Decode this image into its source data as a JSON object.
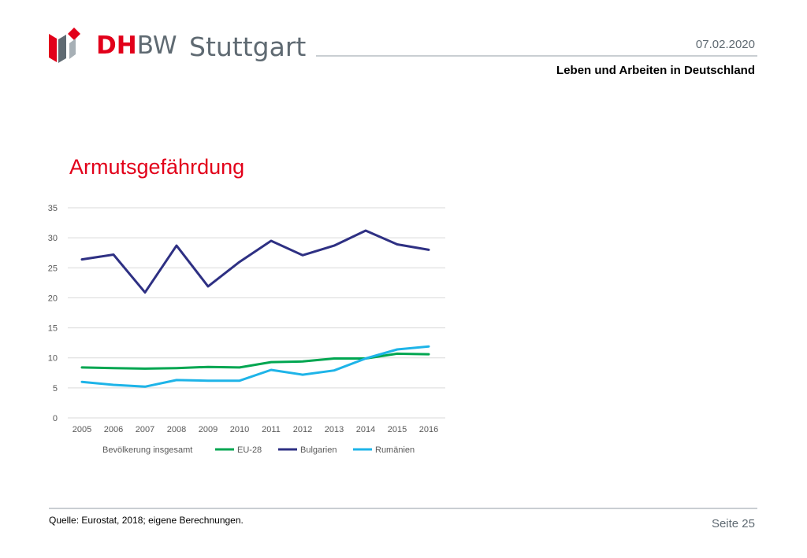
{
  "header": {
    "logo_dh": "DH",
    "logo_bw": "BW",
    "city": "Stuttgart",
    "date": "07.02.2020",
    "subtitle": "Leben und Arbeiten in Deutschland"
  },
  "title": "Armutsgefährdung",
  "footer": {
    "source": "Quelle: Eurostat, 2018; eigene Berechnungen.",
    "page": "Seite 25"
  },
  "colors": {
    "brand_red": "#e2001a",
    "brand_grey": "#5f6a72"
  },
  "chart_data": {
    "type": "line",
    "categories": [
      "2005",
      "2006",
      "2007",
      "2008",
      "2009",
      "2010",
      "2011",
      "2012",
      "2013",
      "2014",
      "2015",
      "2016"
    ],
    "ylim": [
      0,
      35
    ],
    "yticks": [
      0,
      5,
      10,
      15,
      20,
      25,
      30,
      35
    ],
    "grid": true,
    "legend_position": "bottom",
    "legend_label": "Bevölkerung insgesamt",
    "series": [
      {
        "name": "EU-28",
        "color": "#00a651",
        "values": [
          8.4,
          8.3,
          8.2,
          8.3,
          8.5,
          8.4,
          9.3,
          9.4,
          9.9,
          9.9,
          10.7,
          10.6
        ]
      },
      {
        "name": "Bulgarien",
        "color": "#2e3083",
        "values": [
          26.4,
          27.2,
          20.9,
          28.7,
          21.9,
          26.0,
          29.5,
          27.1,
          28.7,
          31.2,
          28.9,
          28.0
        ]
      },
      {
        "name": "Rumänien",
        "color": "#1eb4e8",
        "values": [
          6.0,
          5.5,
          5.2,
          6.3,
          6.2,
          6.2,
          8.0,
          7.2,
          7.9,
          9.9,
          11.4,
          11.9
        ]
      }
    ]
  }
}
